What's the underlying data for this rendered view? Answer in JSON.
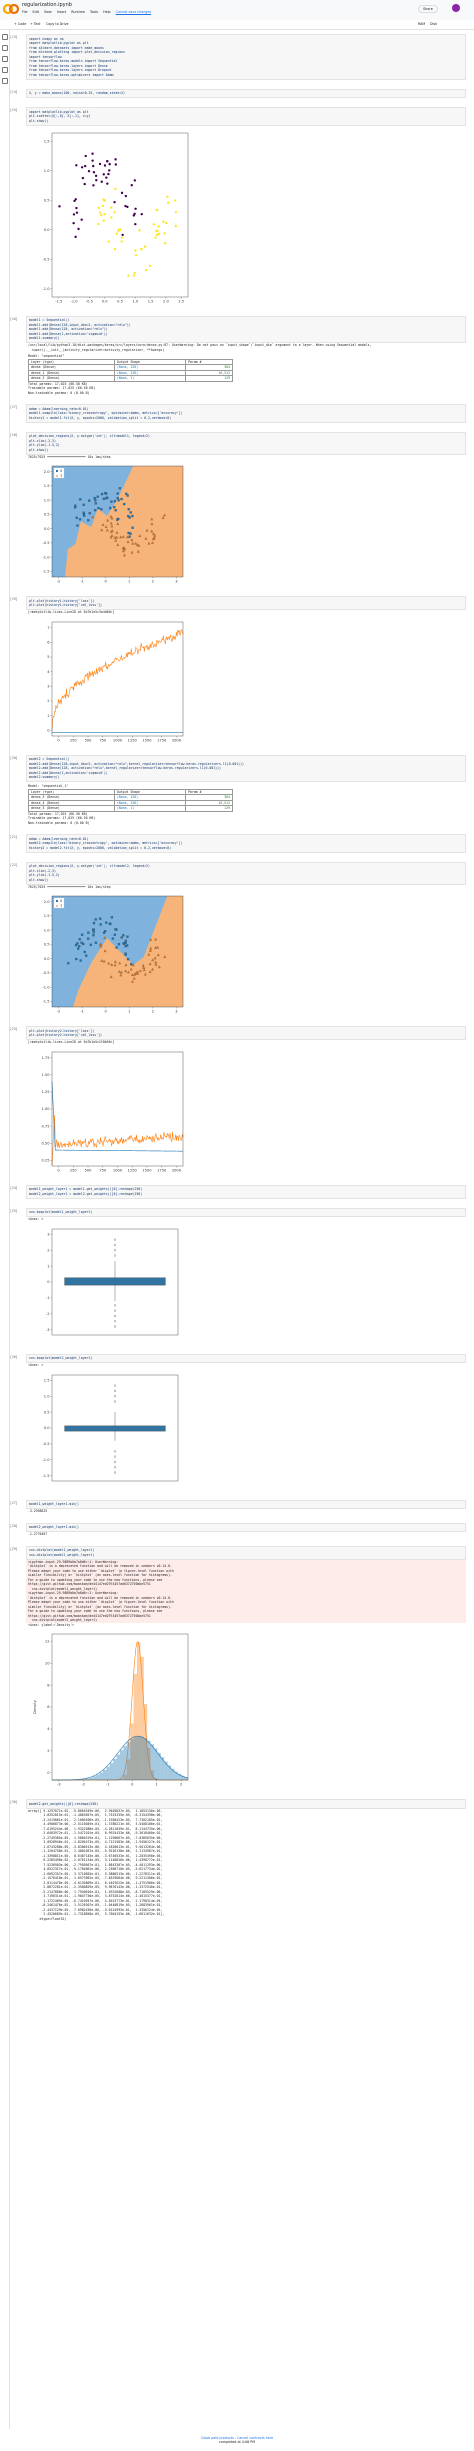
{
  "header": {
    "title": "regularization.ipynb",
    "menu": [
      "File",
      "Edit",
      "View",
      "Insert",
      "Runtime",
      "Tools",
      "Help"
    ],
    "status": "Cannot save changes",
    "share": "Share"
  },
  "toolbar": {
    "add_code": "+ Code",
    "add_text": "+ Text",
    "copy": "Copy to Drive",
    "ram": "RAM",
    "disk": "Disk"
  },
  "cells": [
    {
      "prompt": "[13]",
      "code": [
        "import numpy as np",
        "import matplotlib.pyplot as plt",
        "from sklearn.datasets import make_moons",
        "from mlxtend.plotting import plot_decision_regions",
        "",
        "import tensorflow",
        "from tensorflow.keras.models import Sequential",
        "from tensorflow.keras.layers import Dense",
        "from tensorflow.keras.layers import Dropout",
        "from tensorflow.keras.optimizers import Adam"
      ]
    },
    {
      "prompt": "[14]",
      "code": [
        "X, y = make_moons(100, noise=0.25, random_state=2)"
      ]
    },
    {
      "prompt": "[15]",
      "code": [
        "import matplotlib.pyplot as plt",
        "plt.scatter(X[:,0], X[:,1], c=y)",
        "plt.show()"
      ],
      "plot": {
        "kind": "scatter",
        "xticks": [
          "-1.5",
          "-1.0",
          "-0.5",
          "0.0",
          "0.5",
          "1.0",
          "1.5",
          "2.0",
          "2.5"
        ],
        "yticks": [
          "1.5",
          "1.0",
          "0.5",
          "0.0",
          "-0.5",
          "-1.0"
        ]
      }
    },
    {
      "prompt": "[16]",
      "code": [
        "model1 = Sequential()",
        "",
        "model1.add(Dense(128,input_dim=2, activation=\"relu\"))",
        "model1.add(Dense(128, activation=\"relu\"))",
        "model1.add(Dense(1,activation='sigmoid'))",
        "",
        "model1.summary()"
      ],
      "outputs": [
        "/usr/local/lib/python3.10/dist-packages/keras/src/layers/core/dense.py:87: UserWarning: Do not pass an `input_shape`/`input_dim` argument to a layer. When using Sequential models,",
        "  super().__init__(activity_regularizer=activity_regularizer, **kwargs)"
      ],
      "table": {
        "name": "Model: \"sequential\"",
        "header": [
          "Layer (type)",
          "Output Shape",
          "Param #"
        ],
        "rows": [
          [
            "dense (Dense)",
            "(None, 128)",
            "384"
          ],
          [
            "dense_1 (Dense)",
            "(None, 128)",
            "16,512"
          ],
          [
            "dense_2 (Dense)",
            "(None, 1)",
            "129"
          ]
        ],
        "totals": [
          "Total params: 17,025 (66.50 KB)",
          "Trainable params: 17,025 (66.50 KB)",
          "Non-trainable params: 0 (0.00 B)"
        ]
      }
    },
    {
      "prompt": "[17]",
      "code": [
        "adam = Adam(learning_rate=0.01)",
        "model1.compile(loss='binary_crossentropy', optimizer=adam, metrics=['accuracy'])",
        "",
        "history1 = model1.fit(X, y, epochs=2000, validation_split = 0.2,verbose=0)"
      ]
    },
    {
      "prompt": "[18]",
      "code": [
        "plot_decision_regions(X, y.astype('int'), clf=model1, legend=2)",
        "plt.xlim(-2,3)",
        "plt.ylim(-1.5,2)",
        "plt.show()"
      ],
      "outputs": [
        "7625/7625 ━━━━━━━━━━━━━━━━━━━━ 10s 1ms/step"
      ],
      "plot": {
        "kind": "decision",
        "shape": "overfit",
        "legend": [
          "0",
          "1"
        ],
        "xticks": [
          "-2",
          "-1",
          "0",
          "1",
          "2",
          "3"
        ],
        "yticks": [
          "2.0",
          "1.5",
          "1.0",
          "0.5",
          "0.0",
          "-0.5",
          "-1.0",
          "-1.5"
        ]
      }
    },
    {
      "prompt": "[19]",
      "code": [
        "plt.plot(history1.history['loss'])",
        "plt.plot(history1.history['val_loss'])"
      ],
      "outputs": [
        "[<matplotlib.lines.Line2D at 0x7b1e5c3a4d60>]"
      ],
      "plot": {
        "kind": "loss",
        "shape": "diverge",
        "xticks": [
          "0",
          "250",
          "500",
          "750",
          "1000",
          "1250",
          "1500",
          "1750",
          "2000"
        ],
        "yticks": [
          "7",
          "6",
          "5",
          "4",
          "3",
          "2",
          "1",
          "0"
        ]
      }
    },
    {
      "prompt": "[20]",
      "code": [
        "model2 = Sequential()",
        "",
        "model2.add(Dense(128,input_dim=2, activation=\"relu\",kernel_regularizer=tensorflow.keras.regularizers.l1(0.001)))",
        "model2.add(Dense(128, activation=\"relu\",kernel_regularizer=tensorflow.keras.regularizers.l1(0.001)))",
        "model2.add(Dense(1,activation='sigmoid'))",
        "",
        "model2.summary()"
      ],
      "table": {
        "name": "Model: \"sequential_1\"",
        "header": [
          "Layer (type)",
          "Output Shape",
          "Param #"
        ],
        "rows": [
          [
            "dense_3 (Dense)",
            "(None, 128)",
            "384"
          ],
          [
            "dense_4 (Dense)",
            "(None, 128)",
            "16,512"
          ],
          [
            "dense_5 (Dense)",
            "(None, 1)",
            "129"
          ]
        ],
        "totals": [
          "Total params: 17,025 (66.50 KB)",
          "Trainable params: 17,025 (66.50 KB)",
          "Non-trainable params: 0 (0.00 B)"
        ]
      }
    },
    {
      "prompt": "[21]",
      "code": [
        "adam = Adam(learning_rate=0.01)",
        "model2.compile(loss='binary_crossentropy', optimizer=adam, metrics=['accuracy'])",
        "",
        "history2 = model2.fit(X, y, epochs=2000, validation_split = 0.2,verbose=0)"
      ]
    },
    {
      "prompt": "[22]",
      "code": [
        "plot_decision_regions(X, y.astype('int'), clf=model2, legend=2)",
        "plt.xlim(-2,3)",
        "plt.ylim(-1.5,2)",
        "plt.show()"
      ],
      "outputs": [
        "7625/7625 ━━━━━━━━━━━━━━━━━━━━ 10s 1ms/step"
      ],
      "plot": {
        "kind": "decision",
        "shape": "smooth",
        "legend": [
          "0",
          "1"
        ],
        "xticks": [
          "-2",
          "-1",
          "0",
          "1",
          "2",
          "3"
        ],
        "yticks": [
          "2.0",
          "1.5",
          "1.0",
          "0.5",
          "0.0",
          "-0.5",
          "-1.0",
          "-1.5"
        ]
      }
    },
    {
      "prompt": "[23]",
      "code": [
        "plt.plot(history2.history['loss'])",
        "plt.plot(history2.history['val_loss'])"
      ],
      "outputs": [
        "[<matplotlib.lines.Line2D at 0x7b1e5c2f8b50>]"
      ],
      "plot": {
        "kind": "loss",
        "shape": "flat",
        "xticks": [
          "0",
          "250",
          "500",
          "750",
          "1000",
          "1250",
          "1500",
          "1750",
          "2000"
        ],
        "yticks": [
          "1.75",
          "1.50",
          "1.25",
          "1.00",
          "0.75",
          "0.50",
          "0.25"
        ]
      }
    },
    {
      "prompt": "[24]",
      "code": [
        "model1_weight_layer1 = model1.get_weights()[0].reshape(256)",
        "model2_weight_layer1 = model2.get_weights()[0].reshape(256)"
      ]
    },
    {
      "prompt": "[25]",
      "code": [
        "sns.boxplot(model1_weight_layer1)"
      ],
      "outputs": [
        "<Axes: >"
      ],
      "plot": {
        "kind": "box",
        "shape": "wide",
        "yticks": [
          "3",
          "2",
          "1",
          "0",
          "-1",
          "-2",
          "-3"
        ]
      }
    },
    {
      "prompt": "[26]",
      "code": [
        "sns.boxplot(model2_weight_layer1)"
      ],
      "outputs": [
        "<Axes: >"
      ],
      "plot": {
        "kind": "box",
        "shape": "narrow",
        "yticks": [
          "1.5",
          "1.0",
          "0.5",
          "0.0",
          "-0.5",
          "-1.0",
          "-1.5"
        ]
      }
    },
    {
      "prompt": "[27]",
      "code": [
        "model1_weight_layer1.min()"
      ],
      "outputs": [
        "-3.2958825"
      ]
    },
    {
      "prompt": "[28]",
      "code": [
        "model2_weight_layer1.min()"
      ],
      "outputs": [
        "-1.2770407"
      ]
    },
    {
      "prompt": "[29]",
      "code": [
        "sns.distplot(model1_weight_layer1)",
        "sns.distplot(model2_weight_layer1)"
      ],
      "outputs": [
        "<ipython-input-29-9889b0a7a8d6>:1: UserWarning:",
        "",
        "`distplot` is a deprecated function and will be removed in seaborn v0.14.0.",
        "",
        "Please adapt your code to use either `displot` (a figure-level function with",
        "similar flexibility) or `histplot` (an axes-level function for histograms).",
        "",
        "For a guide to updating your code to use the new functions, please see",
        "https://gist.github.com/mwaskom/de44147ed2974457ad6372750bbe5751",
        "",
        "  sns.distplot(model1_weight_layer1)",
        "<ipython-input-29-9889b0a7a8d6>:2: UserWarning:",
        "",
        "`distplot` is a deprecated function and will be removed in seaborn v0.14.0.",
        "",
        "Please adapt your code to use either `displot` (a figure-level function with",
        "similar flexibility) or `histplot` (an axes-level function for histograms).",
        "",
        "For a guide to updating your code to use the new functions, please see",
        "https://gist.github.com/mwaskom/de44147ed2974457ad6372750bbe5751",
        "",
        "  sns.distplot(model2_weight_layer1)",
        "<Axes: ylabel='Density'>"
      ],
      "plot": {
        "kind": "density",
        "ylabel": "Density",
        "xticks": [
          "-3",
          "-2",
          "-1",
          "0",
          "1",
          "2"
        ],
        "yticks": [
          "12",
          "10",
          "8",
          "6",
          "4",
          "2",
          "0"
        ]
      }
    },
    {
      "prompt": "[30]",
      "code": [
        "model2.get_weights()[0].reshape(256)"
      ],
      "outputs": [
        "array([ 5.1297071e-02, -9.8064549e-06,  2.9405837e-05,  1.1853136e-05,",
        "        1.0352815e-01, -1.4863057e-05,  1.7525335e-05, -6.3154398e-06,",
        "       -3.2419861e-01,  2.1005496e-05, -1.1958423e-05,  7.7302185e-02,",
        "        4.4906873e-06, -2.5116049e-01,  1.3780221e-05,  3.5408106e-01,",
        "       -7.6195244e-06,  1.9322580e-05, -4.2811039e-01,  8.1144735e-06,",
        "        2.6403972e-01, -1.5472101e-05,  6.9925433e-06, -9.3618460e-02,",
        "       -2.2749385e-05,  1.5804519e-01,  1.1290667e-05, -7.0385635e-06,",
        "        3.0928946e-01, -1.8205473e-05,  4.7121583e-06, -1.9450127e-01,",
        "        1.6743288e-05, -3.8306513e-06,  4.1826013e-01,  9.5613264e-06,",
        "       -1.1204758e-01,  2.4801057e-05, -5.9226138e-06,  2.1134987e-01,",
        "       -1.3398811e-05,  8.6407145e-06, -3.6740533e-01,  1.2035498e-05,",
        "        6.2285498e-02, -2.0761134e-05,  3.1146826e-06,  1.4398772e-01,",
        "        7.5236903e-06, -2.7950567e-01,  1.8843307e-05, -4.4011293e-06,",
        "        4.8522317e-01, -9.1704861e-06,  2.2368710e-05, -5.6217734e-02,",
        "       -1.6092357e-05,  3.3710855e-01,  5.3886513e-06, -1.2278311e-05,",
        "       -2.1576418e-01,  1.0573962e-05, -7.8329004e-06,  9.2211306e-02,",
        "        2.0114478e-05, -4.0135869e-01,  6.4407625e-06, -1.4751906e-05,",
        "        2.8872281e-01, -2.3560829e-05,  9.9870143e-06, -1.3372540e-01,",
        "       -5.2147808e-06,  1.7940616e-01,  1.4922608e-05, -8.7105529e-06,",
        "        3.7196314e-01, -1.9847730e-05,  3.8752014e-06, -2.4015377e-01,",
        "        1.1722469e-05, -6.7410947e-06,  4.5013773e-01,  2.1790314e-05,",
        "       -8.2461476e-02,  1.5126307e-05, -1.0440819e-05,  1.2683901e-01,",
        "       -2.4437129e-05,  7.0982436e-06, -3.0124593e-01,  1.3356124e-05,",
        "        2.4520689e-01, -1.7318850e-05,  5.7604153e-06, -1.6811632e-01],",
        "      dtype=float32)"
      ]
    }
  ],
  "footer": {
    "products": "Colab paid products",
    "cancel": "Cancel contracts here",
    "status": "completed at 4:06 PM"
  }
}
